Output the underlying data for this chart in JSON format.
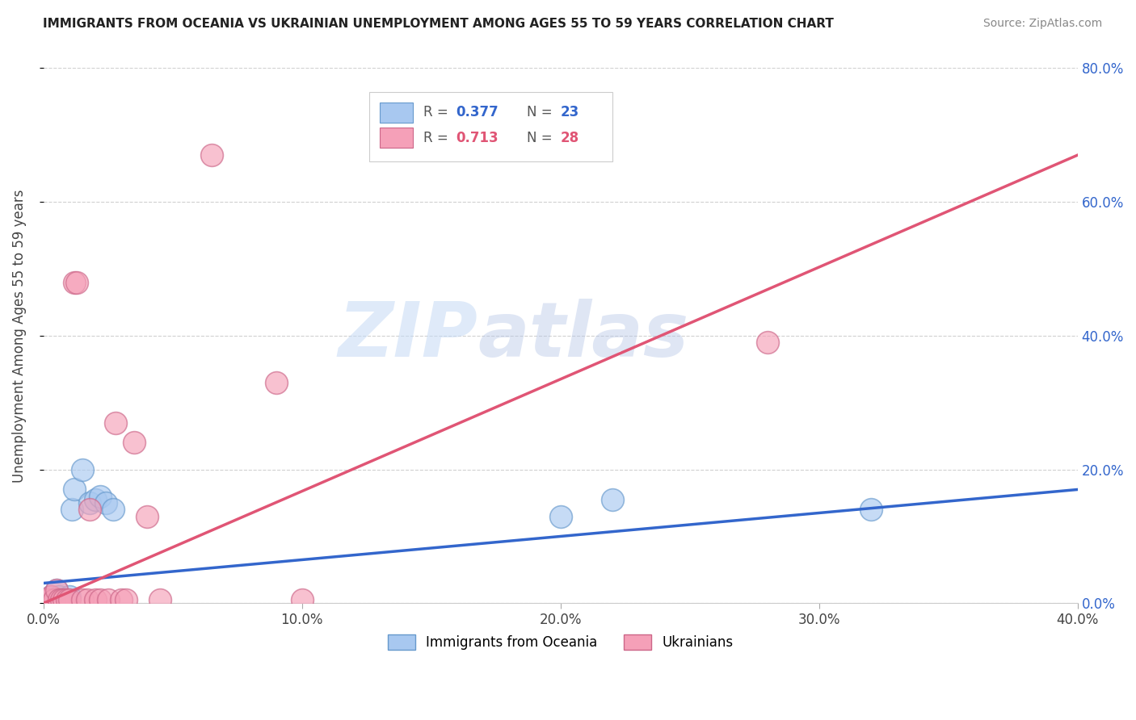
{
  "title": "IMMIGRANTS FROM OCEANIA VS UKRAINIAN UNEMPLOYMENT AMONG AGES 55 TO 59 YEARS CORRELATION CHART",
  "source": "Source: ZipAtlas.com",
  "ylabel": "Unemployment Among Ages 55 to 59 years",
  "xlabel_ticks": [
    "0.0%",
    "10.0%",
    "20.0%",
    "30.0%",
    "40.0%"
  ],
  "xlabel_vals": [
    0.0,
    0.1,
    0.2,
    0.3,
    0.4
  ],
  "ylabel_ticks_right": [
    "0.0%",
    "20.0%",
    "40.0%",
    "60.0%",
    "80.0%"
  ],
  "ylabel_vals_right": [
    0.0,
    0.2,
    0.4,
    0.6,
    0.8
  ],
  "watermark_zip": "ZIP",
  "watermark_atlas": "atlas",
  "legend_blue_r": "0.377",
  "legend_blue_n": "23",
  "legend_pink_r": "0.713",
  "legend_pink_n": "28",
  "blue_scatter_x": [
    0.001,
    0.002,
    0.003,
    0.004,
    0.005,
    0.005,
    0.006,
    0.006,
    0.007,
    0.008,
    0.009,
    0.01,
    0.011,
    0.012,
    0.015,
    0.018,
    0.02,
    0.022,
    0.024,
    0.027,
    0.2,
    0.22,
    0.32
  ],
  "blue_scatter_y": [
    0.005,
    0.005,
    0.01,
    0.005,
    0.005,
    0.02,
    0.005,
    0.01,
    0.005,
    0.005,
    0.005,
    0.01,
    0.14,
    0.17,
    0.2,
    0.15,
    0.155,
    0.16,
    0.15,
    0.14,
    0.13,
    0.155,
    0.14
  ],
  "pink_scatter_x": [
    0.001,
    0.002,
    0.003,
    0.004,
    0.005,
    0.006,
    0.007,
    0.008,
    0.009,
    0.01,
    0.012,
    0.013,
    0.015,
    0.017,
    0.018,
    0.02,
    0.022,
    0.025,
    0.028,
    0.03,
    0.032,
    0.035,
    0.04,
    0.045,
    0.065,
    0.09,
    0.1,
    0.28
  ],
  "pink_scatter_y": [
    0.005,
    0.005,
    0.01,
    0.005,
    0.02,
    0.005,
    0.005,
    0.005,
    0.005,
    0.005,
    0.48,
    0.48,
    0.005,
    0.005,
    0.14,
    0.005,
    0.005,
    0.005,
    0.27,
    0.005,
    0.005,
    0.24,
    0.13,
    0.005,
    0.67,
    0.33,
    0.005,
    0.39
  ],
  "blue_color": "#a8c8f0",
  "pink_color": "#f5a0b8",
  "blue_line_color": "#3366cc",
  "pink_line_color": "#e05575",
  "background_color": "#ffffff",
  "grid_color": "#d0d0d0",
  "xlim": [
    0.0,
    0.4
  ],
  "ylim": [
    0.0,
    0.8
  ],
  "blue_line_x0": 0.0,
  "blue_line_y0": 0.03,
  "blue_line_x1": 0.4,
  "blue_line_y1": 0.17,
  "pink_line_x0": 0.0,
  "pink_line_y0": 0.0,
  "pink_line_x1": 0.4,
  "pink_line_y1": 0.67
}
